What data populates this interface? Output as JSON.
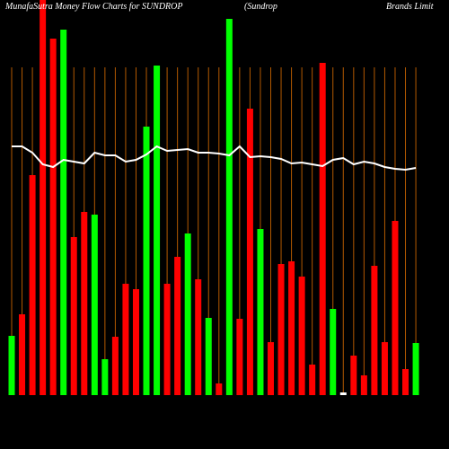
{
  "chart_data": {
    "type": "bar",
    "title": "MunafaSutra  Money Flow  Charts for SUNDROP",
    "subtitle": "(Sundrop",
    "subtitle2": "Brands Limit",
    "categories": [
      null,
      null,
      null,
      null,
      null,
      null,
      null,
      null,
      null,
      null,
      null,
      null,
      null,
      null,
      null,
      null,
      null,
      null,
      null,
      null,
      null,
      null,
      null,
      null,
      null,
      null,
      null,
      null,
      null,
      null,
      null,
      null,
      null,
      null,
      null,
      null,
      null,
      null,
      null,
      null
    ],
    "values": [
      66,
      90,
      245,
      440,
      397,
      407,
      176,
      204,
      201,
      40,
      65,
      124,
      118,
      299,
      367,
      124,
      154,
      180,
      129,
      86,
      13,
      419,
      85,
      319,
      185,
      59,
      146,
      149,
      132,
      34,
      370,
      96,
      3,
      44,
      22,
      144,
      59,
      194,
      29,
      58
    ],
    "colors": [
      "#00ff00",
      "#ff0000",
      "#ff0000",
      "#ff0000",
      "#ff0000",
      "#00ff00",
      "#ff0000",
      "#ff0000",
      "#00ff00",
      "#00ff00",
      "#ff0000",
      "#ff0000",
      "#ff0000",
      "#00ff00",
      "#00ff00",
      "#ff0000",
      "#ff0000",
      "#00ff00",
      "#ff0000",
      "#00ff00",
      "#ff0000",
      "#00ff00",
      "#ff0000",
      "#ff0000",
      "#00ff00",
      "#ff0000",
      "#ff0000",
      "#ff0000",
      "#ff0000",
      "#ff0000",
      "#ff0000",
      "#00ff00",
      "#ffffff",
      "#ff0000",
      "#ff0000",
      "#ff0000",
      "#ff0000",
      "#ff0000",
      "#ff0000",
      "#00ff00"
    ],
    "line": {
      "color": "#ffffff",
      "values": [
        277,
        277,
        270,
        257,
        254,
        262,
        260,
        258,
        270,
        267,
        267,
        260,
        262,
        268,
        277,
        272,
        273,
        274,
        270,
        270,
        269,
        267,
        277,
        265,
        266,
        265,
        263,
        258,
        259,
        257,
        255,
        262,
        264,
        257,
        260,
        258,
        254,
        252,
        251,
        253
      ]
    },
    "ylim": [
      0,
      440
    ]
  }
}
